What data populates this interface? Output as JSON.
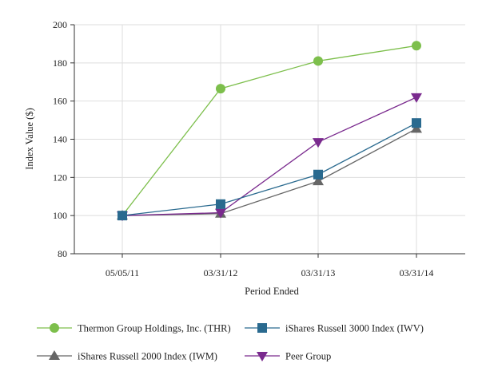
{
  "chart_data": {
    "type": "line",
    "title": "",
    "xlabel": "Period Ended",
    "ylabel": "Index Value ($)",
    "categories": [
      "05/05/11",
      "03/31/12",
      "03/31/13",
      "03/31/14"
    ],
    "ylim": [
      80,
      200
    ],
    "yticks": [
      80,
      100,
      120,
      140,
      160,
      180,
      200
    ],
    "grid": true,
    "legend_position": "bottom",
    "series": [
      {
        "name": "Thermon Group Holdings, Inc. (THR)",
        "values": [
          100,
          166.5,
          181,
          189
        ],
        "color": "#7dbf4c",
        "marker": "circle"
      },
      {
        "name": "iShares Russell 3000 Index (IWV)",
        "values": [
          100,
          106,
          121.5,
          148.5
        ],
        "color": "#2a6a8f",
        "marker": "square"
      },
      {
        "name": "iShares Russell 2000 Index (IWM)",
        "values": [
          100,
          101,
          118,
          145.5
        ],
        "color": "#666666",
        "marker": "triangle-up"
      },
      {
        "name": "Peer Group",
        "values": [
          100,
          101.5,
          138.5,
          162
        ],
        "color": "#7a2a8e",
        "marker": "triangle-down"
      }
    ]
  }
}
